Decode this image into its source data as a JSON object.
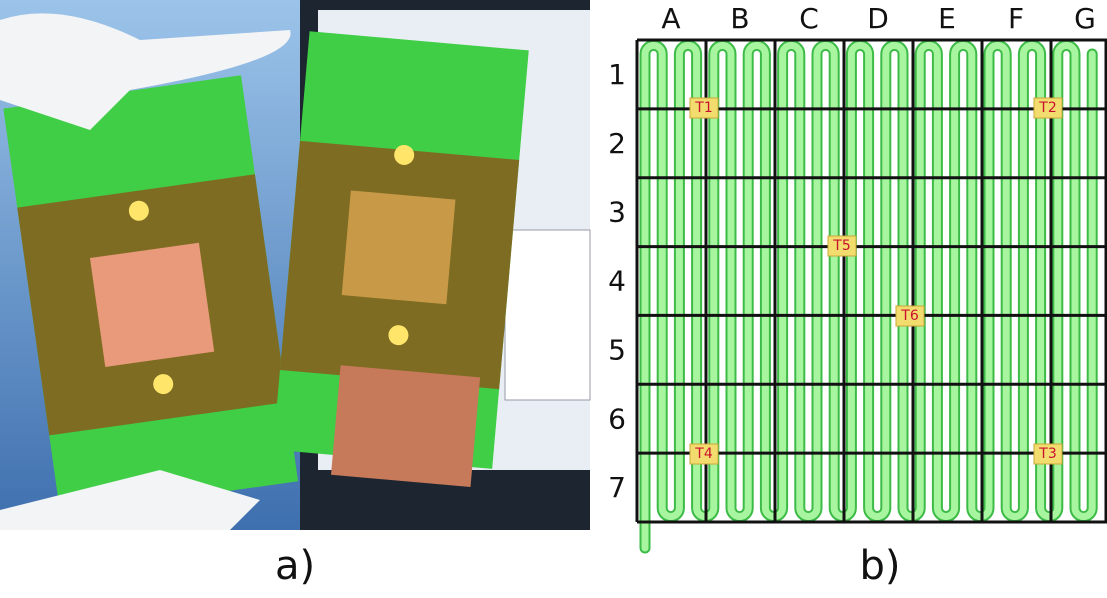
{
  "panels": {
    "a": {
      "label": "a)"
    },
    "b": {
      "label": "b)"
    }
  },
  "grid": {
    "columns": [
      "A",
      "B",
      "C",
      "D",
      "E",
      "F",
      "G"
    ],
    "rows": [
      "1",
      "2",
      "3",
      "4",
      "5",
      "6",
      "7"
    ]
  },
  "sensors": [
    "T1",
    "T2",
    "T3",
    "T4",
    "T5",
    "T6"
  ]
}
